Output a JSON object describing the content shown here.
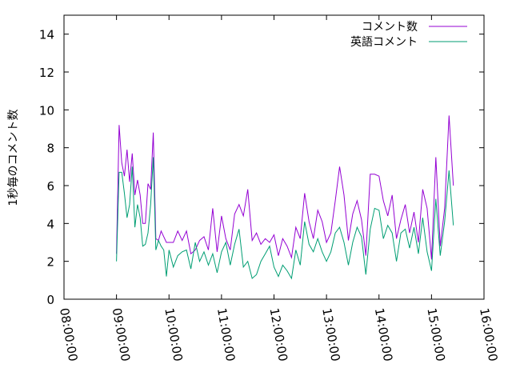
{
  "chart_data": {
    "type": "line",
    "title": "",
    "xlabel": "",
    "ylabel": "1秒毎のコメント数",
    "ylim": [
      0,
      15
    ],
    "yticks": [
      "0",
      "2",
      "4",
      "6",
      "8",
      "10",
      "12",
      "14"
    ],
    "xlim": [
      "08:00:00",
      "16:00:00"
    ],
    "xticks": [
      "08:00:00",
      "09:00:00",
      "10:00:00",
      "11:00:00",
      "12:00:00",
      "13:00:00",
      "14:00:00",
      "15:00:00",
      "16:00:00"
    ],
    "grid": false,
    "legend_position": "top-right",
    "series": [
      {
        "name": "コメント数",
        "color": "#9400d3",
        "x": [
          "09:00",
          "09:03",
          "09:06",
          "09:09",
          "09:12",
          "09:15",
          "09:18",
          "09:21",
          "09:24",
          "09:27",
          "09:30",
          "09:33",
          "09:36",
          "09:39",
          "09:42",
          "09:45",
          "09:48",
          "09:51",
          "09:54",
          "09:57",
          "10:00",
          "10:05",
          "10:10",
          "10:15",
          "10:20",
          "10:25",
          "10:30",
          "10:35",
          "10:40",
          "10:45",
          "10:50",
          "10:55",
          "11:00",
          "11:05",
          "11:10",
          "11:15",
          "11:20",
          "11:25",
          "11:30",
          "11:35",
          "11:40",
          "11:45",
          "11:50",
          "11:55",
          "12:00",
          "12:05",
          "12:10",
          "12:15",
          "12:20",
          "12:25",
          "12:30",
          "12:35",
          "12:40",
          "12:45",
          "12:50",
          "12:55",
          "13:00",
          "13:05",
          "13:10",
          "13:15",
          "13:20",
          "13:25",
          "13:30",
          "13:35",
          "13:40",
          "13:45",
          "13:50",
          "13:55",
          "14:00",
          "14:05",
          "14:10",
          "14:15",
          "14:20",
          "14:25",
          "14:30",
          "14:35",
          "14:40",
          "14:45",
          "14:50",
          "14:55",
          "15:00",
          "15:05",
          "15:10",
          "15:15",
          "15:20",
          "15:25"
        ],
        "y": [
          2.4,
          9.2,
          7.2,
          6.5,
          7.9,
          6.2,
          7.7,
          5.5,
          6.3,
          5.5,
          4.0,
          4.0,
          6.1,
          5.8,
          8.8,
          3.2,
          3.1,
          3.6,
          3.3,
          3.0,
          3.0,
          3.0,
          3.6,
          3.1,
          3.6,
          2.4,
          2.6,
          3.1,
          3.3,
          2.6,
          4.8,
          2.5,
          4.4,
          3.2,
          2.6,
          4.5,
          5.0,
          4.4,
          5.8,
          3.1,
          3.5,
          2.9,
          3.2,
          3.0,
          3.4,
          2.3,
          3.2,
          2.8,
          2.2,
          3.8,
          3.2,
          5.6,
          4.1,
          3.2,
          4.7,
          4.1,
          3.0,
          3.5,
          5.2,
          7.0,
          5.5,
          3.1,
          4.5,
          5.2,
          4.2,
          2.3,
          6.6,
          6.6,
          6.5,
          5.2,
          4.4,
          5.5,
          3.2,
          4.2,
          5.0,
          3.5,
          4.6,
          3.0,
          5.8,
          4.8,
          2.1,
          7.5,
          2.8,
          4.8,
          9.7,
          6.0
        ]
      },
      {
        "name": "英語コメント",
        "color": "#009e73",
        "x": [
          "09:00",
          "09:03",
          "09:06",
          "09:09",
          "09:12",
          "09:15",
          "09:18",
          "09:21",
          "09:24",
          "09:27",
          "09:30",
          "09:33",
          "09:36",
          "09:39",
          "09:42",
          "09:45",
          "09:48",
          "09:51",
          "09:54",
          "09:57",
          "10:00",
          "10:05",
          "10:10",
          "10:15",
          "10:20",
          "10:25",
          "10:30",
          "10:35",
          "10:40",
          "10:45",
          "10:50",
          "10:55",
          "11:00",
          "11:05",
          "11:10",
          "11:15",
          "11:20",
          "11:25",
          "11:30",
          "11:35",
          "11:40",
          "11:45",
          "11:50",
          "11:55",
          "12:00",
          "12:05",
          "12:10",
          "12:15",
          "12:20",
          "12:25",
          "12:30",
          "12:35",
          "12:40",
          "12:45",
          "12:50",
          "12:55",
          "13:00",
          "13:05",
          "13:10",
          "13:15",
          "13:20",
          "13:25",
          "13:30",
          "13:35",
          "13:40",
          "13:45",
          "13:50",
          "13:55",
          "14:00",
          "14:05",
          "14:10",
          "14:15",
          "14:20",
          "14:25",
          "14:30",
          "14:35",
          "14:40",
          "14:45",
          "14:50",
          "14:55",
          "15:00",
          "15:05",
          "15:10",
          "15:15",
          "15:20",
          "15:25"
        ],
        "y": [
          2.0,
          6.7,
          6.7,
          5.6,
          4.3,
          5.0,
          7.0,
          3.8,
          5.0,
          4.3,
          2.8,
          2.9,
          3.5,
          5.0,
          7.5,
          2.6,
          3.1,
          2.8,
          2.6,
          1.2,
          2.6,
          1.7,
          2.3,
          2.5,
          2.6,
          1.6,
          3.0,
          2.0,
          2.5,
          1.8,
          2.4,
          1.4,
          2.5,
          3.0,
          1.8,
          2.9,
          3.7,
          1.7,
          2.0,
          1.1,
          1.3,
          2.0,
          2.4,
          2.8,
          1.7,
          1.2,
          1.8,
          1.5,
          1.1,
          2.6,
          1.8,
          4.1,
          2.9,
          2.5,
          3.2,
          2.5,
          2.0,
          2.5,
          3.5,
          3.8,
          3.0,
          1.8,
          3.0,
          3.8,
          3.3,
          1.3,
          3.7,
          4.8,
          4.7,
          3.2,
          3.9,
          3.5,
          2.0,
          3.5,
          3.7,
          2.7,
          3.8,
          2.4,
          4.3,
          2.5,
          1.5,
          5.3,
          2.3,
          4.1,
          6.8,
          3.9
        ]
      }
    ]
  }
}
